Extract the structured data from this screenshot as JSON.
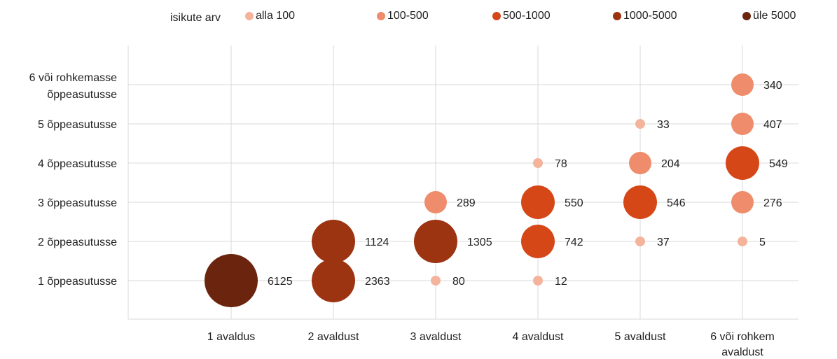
{
  "chart_data": {
    "type": "bubble",
    "legend": {
      "title": "isikute arv",
      "placement": "top",
      "items": [
        {
          "label": "alla 100",
          "color": "#f4b39b"
        },
        {
          "label": "100-500",
          "color": "#ee8c6c"
        },
        {
          "label": "500-1000",
          "color": "#d64718"
        },
        {
          "label": "1000-5000",
          "color": "#9c3412"
        },
        {
          "label": "üle 5000",
          "color": "#6b240d"
        }
      ]
    },
    "x_categories": [
      "1 avaldus",
      "2 avaldust",
      "3 avaldust",
      "4 avaldust",
      "5 avaldust",
      "6 või rohkem avaldust"
    ],
    "y_categories": [
      "1 õppeasutusse",
      "2 õppeasutusse",
      "3 õppeasutusse",
      "4 õppeasutusse",
      "5 õppeasutusse",
      "6 või rohkemasse õppeasutusse"
    ],
    "grid": true,
    "points": [
      {
        "x": "1 avaldus",
        "y": "1 õppeasutusse",
        "value": 6125,
        "label": "6125"
      },
      {
        "x": "2 avaldust",
        "y": "1 õppeasutusse",
        "value": 2363,
        "label": "2363"
      },
      {
        "x": "2 avaldust",
        "y": "2 õppeasutusse",
        "value": 1124,
        "label": "1124"
      },
      {
        "x": "3 avaldust",
        "y": "1 õppeasutusse",
        "value": 80,
        "label": "80"
      },
      {
        "x": "3 avaldust",
        "y": "2 õppeasutusse",
        "value": 1305,
        "label": "1305"
      },
      {
        "x": "3 avaldust",
        "y": "3 õppeasutusse",
        "value": 289,
        "label": "289"
      },
      {
        "x": "4 avaldust",
        "y": "1 õppeasutusse",
        "value": 12,
        "label": "12"
      },
      {
        "x": "4 avaldust",
        "y": "2 õppeasutusse",
        "value": 742,
        "label": "742"
      },
      {
        "x": "4 avaldust",
        "y": "3 õppeasutusse",
        "value": 550,
        "label": "550"
      },
      {
        "x": "4 avaldust",
        "y": "4 õppeasutusse",
        "value": 78,
        "label": "78"
      },
      {
        "x": "5 avaldust",
        "y": "2 õppeasutusse",
        "value": 37,
        "label": "37"
      },
      {
        "x": "5 avaldust",
        "y": "3 õppeasutusse",
        "value": 546,
        "label": "546"
      },
      {
        "x": "5 avaldust",
        "y": "4 õppeasutusse",
        "value": 204,
        "label": "204"
      },
      {
        "x": "5 avaldust",
        "y": "5 õppeasutusse",
        "value": 33,
        "label": "33"
      },
      {
        "x": "6 või rohkem avaldust",
        "y": "2 õppeasutusse",
        "value": 5,
        "label": "5"
      },
      {
        "x": "6 või rohkem avaldust",
        "y": "3 õppeasutusse",
        "value": 276,
        "label": "276"
      },
      {
        "x": "6 või rohkem avaldust",
        "y": "4 õppeasutusse",
        "value": 549,
        "label": "549"
      },
      {
        "x": "6 või rohkem avaldust",
        "y": "5 õppeasutusse",
        "value": 407,
        "label": "407"
      },
      {
        "x": "6 või rohkem avaldust",
        "y": "6 või rohkemasse õppeasutusse",
        "value": 340,
        "label": "340"
      }
    ]
  }
}
